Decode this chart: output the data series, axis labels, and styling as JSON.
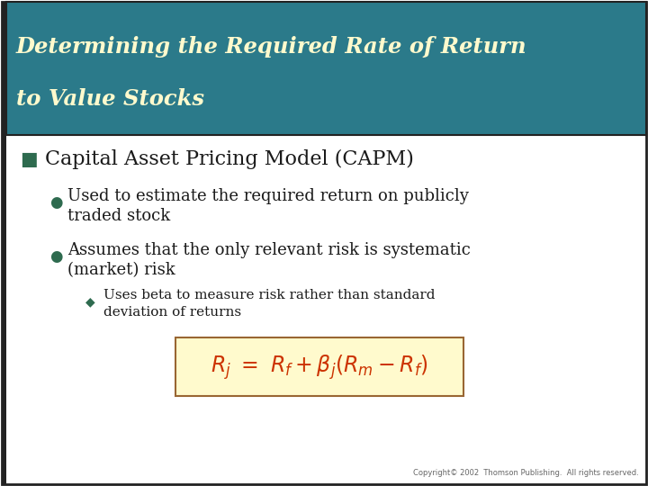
{
  "title_line1": "Determining the Required Rate of Return",
  "title_line2": "to Value Stocks",
  "title_bg_color": "#2B7A8A",
  "title_border_color": "#222222",
  "title_text_color": "#FFFACD",
  "slide_bg_color": "#FFFFFF",
  "bullet1_marker": "■",
  "bullet1_marker_color": "#2E6B4F",
  "bullet1_text": "Capital Asset Pricing Model (CAPM)",
  "bullet1_color": "#1a1a1a",
  "sub_bullet_marker": "●",
  "sub_bullet_color": "#2E6B4F",
  "sub_bullet1_line1": "Used to estimate the required return on publicly",
  "sub_bullet1_line2": "traded stock",
  "sub_bullet2_line1": "Assumes that the only relevant risk is systematic",
  "sub_bullet2_line2": "(market) risk",
  "sub_sub_marker": "◆",
  "sub_sub_color": "#2E6B4F",
  "sub_sub_line1": "Uses beta to measure risk rather than standard",
  "sub_sub_line2": "deviation of returns",
  "formula_color": "#CC3300",
  "formula_bg": "#FFFACD",
  "formula_border": "#996633",
  "copyright": "Copyright© 2002  Thomson Publishing.  All rights reserved.",
  "border_color": "#222222"
}
